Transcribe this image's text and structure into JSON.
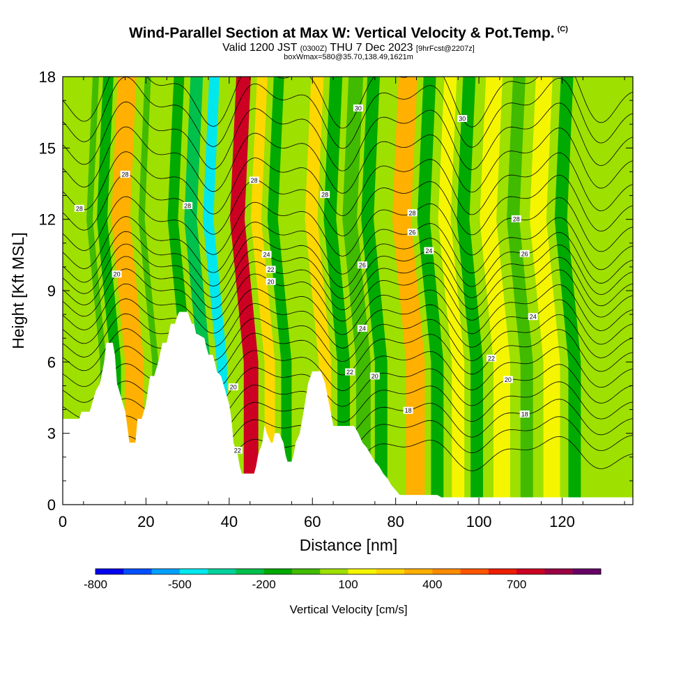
{
  "title": {
    "main": "Wind-Parallel Section at Max W: Vertical Velocity & Pot.Temp.",
    "copyright": "(C)",
    "valid_prefix": "Valid 1200 JST",
    "valid_utc": "(0300Z)",
    "valid_date": "THU 7 Dec 2023",
    "forecast": "[9hrFcst@2207z]",
    "box_info": "boxWmax=580@35.70,138.49,1621m"
  },
  "chart_data": {
    "type": "heatmap",
    "xlabel": "Distance [nm]",
    "ylabel": "Height [Kft MSL]",
    "xlim": [
      0,
      137
    ],
    "ylim": [
      0,
      18
    ],
    "x_ticks": [
      0,
      20,
      40,
      60,
      80,
      100,
      120
    ],
    "y_ticks": [
      0,
      3,
      6,
      9,
      12,
      15,
      18
    ],
    "colorbar": {
      "label": "Vertical Velocity [cm/s]",
      "tick_labels": [
        "-800",
        "-500",
        "-200",
        "100",
        "400",
        "700"
      ],
      "tick_values": [
        -800,
        -500,
        -200,
        100,
        400,
        700
      ],
      "min": -800,
      "max": 900,
      "step": 100,
      "colors": [
        "#0000ee",
        "#0050ff",
        "#00a0ff",
        "#00e8ee",
        "#00d29c",
        "#00c04c",
        "#00aa00",
        "#40bb00",
        "#9ee000",
        "#f5f500",
        "#ffd700",
        "#ffb000",
        "#ff8c00",
        "#ff5500",
        "#ee1d00",
        "#cc0022",
        "#9a0044",
        "#660066"
      ]
    },
    "vertical_velocity_bands": [
      {
        "x": 3,
        "w": 4.5,
        "value": 0
      },
      {
        "x": 9,
        "w": 1.5,
        "value": -100
      },
      {
        "x": 11.5,
        "w": 2.5,
        "value": -200
      },
      {
        "x": 15,
        "w": 4.5,
        "value": 300
      },
      {
        "x": 21.5,
        "w": 1.5,
        "value": -100
      },
      {
        "x": 24,
        "w": 2.5,
        "value": 0
      },
      {
        "x": 28.5,
        "w": 2.5,
        "value": -200
      },
      {
        "x": 32.5,
        "w": 3,
        "value": -300
      },
      {
        "x": 37,
        "w": 2.5,
        "value": -500
      },
      {
        "x": 43.5,
        "w": 3.5,
        "value": 700
      },
      {
        "x": 48.5,
        "w": 2.5,
        "value": 200
      },
      {
        "x": 52.5,
        "w": 2.5,
        "value": -200
      },
      {
        "x": 57,
        "w": 3,
        "value": 0
      },
      {
        "x": 61.5,
        "w": 3,
        "value": 200
      },
      {
        "x": 66,
        "w": 3,
        "value": -200
      },
      {
        "x": 70.5,
        "w": 3.5,
        "value": -100
      },
      {
        "x": 75,
        "w": 3,
        "value": -200
      },
      {
        "x": 82.5,
        "w": 4.5,
        "value": 300
      },
      {
        "x": 88.5,
        "w": 3,
        "value": -200
      },
      {
        "x": 93.5,
        "w": 3,
        "value": 100
      },
      {
        "x": 98,
        "w": 3,
        "value": -200
      },
      {
        "x": 103.5,
        "w": 4,
        "value": 100
      },
      {
        "x": 110,
        "w": 3,
        "value": -100
      },
      {
        "x": 115.5,
        "w": 4,
        "value": 100
      },
      {
        "x": 121.5,
        "w": 3,
        "value": -200
      },
      {
        "x": 129,
        "w": 4,
        "value": 0
      }
    ],
    "terrain": [
      [
        0,
        3.6
      ],
      [
        4,
        3.6
      ],
      [
        4.5,
        3.9
      ],
      [
        6.5,
        3.9
      ],
      [
        7,
        4.2
      ],
      [
        7.5,
        4.5
      ],
      [
        8,
        4.8
      ],
      [
        9,
        5.1
      ],
      [
        10,
        6.0
      ],
      [
        10.5,
        6.8
      ],
      [
        12,
        6.8
      ],
      [
        12.5,
        6.3
      ],
      [
        13,
        5.1
      ],
      [
        14,
        4.5
      ],
      [
        15,
        3.9
      ],
      [
        16,
        2.6
      ],
      [
        17.5,
        2.6
      ],
      [
        18,
        3.6
      ],
      [
        19,
        3.6
      ],
      [
        19.5,
        3.9
      ],
      [
        20,
        4.2
      ],
      [
        20.5,
        4.8
      ],
      [
        21,
        5.4
      ],
      [
        22,
        5.4
      ],
      [
        23,
        6.0
      ],
      [
        24,
        6.8
      ],
      [
        25,
        6.8
      ],
      [
        25.5,
        7.2
      ],
      [
        26,
        7.6
      ],
      [
        27,
        7.6
      ],
      [
        27.5,
        7.9
      ],
      [
        28,
        8.1
      ],
      [
        30,
        8.1
      ],
      [
        31,
        7.6
      ],
      [
        31.5,
        7.6
      ],
      [
        32,
        7.2
      ],
      [
        34,
        7.0
      ],
      [
        34.5,
        6.6
      ],
      [
        35,
        6.3
      ],
      [
        36,
        6.3
      ],
      [
        36.5,
        6.0
      ],
      [
        37,
        5.6
      ],
      [
        38,
        5.4
      ],
      [
        39,
        4.8
      ],
      [
        40,
        4.2
      ],
      [
        40.5,
        3.6
      ],
      [
        41,
        2.6
      ],
      [
        42,
        2.1
      ],
      [
        42.5,
        1.6
      ],
      [
        43,
        1.3
      ],
      [
        46,
        1.3
      ],
      [
        46.5,
        1.6
      ],
      [
        47,
        2.1
      ],
      [
        48,
        2.6
      ],
      [
        48.5,
        3.3
      ],
      [
        49,
        3.0
      ],
      [
        50,
        2.6
      ],
      [
        50.5,
        2.6
      ],
      [
        51,
        3.0
      ],
      [
        52,
        3.0
      ],
      [
        53,
        2.6
      ],
      [
        53.5,
        2.1
      ],
      [
        54,
        1.8
      ],
      [
        55,
        1.8
      ],
      [
        55.5,
        2.1
      ],
      [
        56,
        2.6
      ],
      [
        57,
        3.0
      ],
      [
        58,
        4.0
      ],
      [
        59,
        5.1
      ],
      [
        60,
        5.6
      ],
      [
        62,
        5.6
      ],
      [
        63,
        5.1
      ],
      [
        64,
        4.2
      ],
      [
        65,
        3.3
      ],
      [
        70,
        3.3
      ],
      [
        71,
        3.0
      ],
      [
        72,
        2.6
      ],
      [
        73,
        2.4
      ],
      [
        74,
        2.1
      ],
      [
        75,
        1.8
      ],
      [
        76,
        1.6
      ],
      [
        77,
        1.3
      ],
      [
        78,
        1.1
      ],
      [
        79,
        0.8
      ],
      [
        80,
        0.6
      ],
      [
        81,
        0.4
      ],
      [
        90,
        0.4
      ],
      [
        91,
        0.3
      ],
      [
        137,
        0.3
      ]
    ],
    "theta_contours": [
      {
        "base": 2.2,
        "label": "22",
        "label_x": [
          42
        ]
      },
      {
        "base": 3.0,
        "label": "",
        "label_x": []
      },
      {
        "base": 3.7,
        "label": "18",
        "label_x": [
          83,
          111
        ]
      },
      {
        "base": 4.4,
        "label": "",
        "label_x": []
      },
      {
        "base": 5.1,
        "label": "20",
        "label_x": [
          41,
          75,
          107
        ]
      },
      {
        "base": 5.8,
        "label": "",
        "label_x": []
      },
      {
        "base": 6.5,
        "label": "22",
        "label_x": [
          69,
          103
        ]
      },
      {
        "base": 7.1,
        "label": "",
        "label_x": []
      },
      {
        "base": 7.7,
        "label": "24",
        "label_x": [
          72,
          113
        ]
      },
      {
        "base": 8.3,
        "label": "",
        "label_x": []
      },
      {
        "base": 8.9,
        "label": "20",
        "label_x": [
          13,
          50
        ]
      },
      {
        "base": 9.4,
        "label": "22",
        "label_x": [
          50
        ]
      },
      {
        "base": 9.9,
        "label": "24",
        "label_x": [
          49,
          88
        ]
      },
      {
        "base": 10.4,
        "label": "26",
        "label_x": [
          72,
          111
        ]
      },
      {
        "base": 11.0,
        "label": "26",
        "label_x": [
          84
        ]
      },
      {
        "base": 11.8,
        "label": "28",
        "label_x": [
          84,
          109
        ]
      },
      {
        "base": 12.7,
        "label": "28",
        "label_x": [
          15,
          30,
          46
        ]
      },
      {
        "base": 13.6,
        "label": "28",
        "label_x": [
          4,
          63
        ]
      },
      {
        "base": 14.6,
        "label": "",
        "label_x": []
      },
      {
        "base": 15.6,
        "label": "",
        "label_x": []
      },
      {
        "base": 16.6,
        "label": "",
        "label_x": []
      },
      {
        "base": 17.5,
        "label": "30",
        "label_x": [
          71,
          96
        ]
      }
    ]
  }
}
